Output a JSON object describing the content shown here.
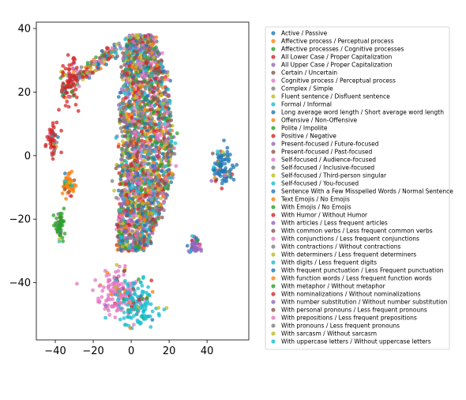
{
  "chart_data": {
    "type": "scatter",
    "title": "",
    "xlabel": "",
    "ylabel": "",
    "xlim": [
      -50,
      62
    ],
    "ylim": [
      -58,
      42
    ],
    "xticks": [
      -40,
      -20,
      0,
      20,
      40
    ],
    "yticks": [
      -40,
      -20,
      0,
      20,
      40
    ],
    "xtick_labels": [
      "−40",
      "−20",
      "0",
      "20",
      "40"
    ],
    "ytick_labels": [
      "−40",
      "−20",
      "0",
      "20",
      "40"
    ],
    "grid": false,
    "legend_position": "right, outside plot",
    "clusters": [
      {
        "center": [
          -41,
          5
        ],
        "spread": [
          1.5,
          2.2
        ],
        "count": 60,
        "color_index": 3
      },
      {
        "center": [
          -33,
          -9
        ],
        "spread": [
          1.5,
          1.8
        ],
        "count": 60,
        "color_index": 1
      },
      {
        "center": [
          -38,
          -22
        ],
        "spread": [
          1.3,
          2.2
        ],
        "count": 60,
        "color_index": 2
      },
      {
        "center": [
          -32,
          23
        ],
        "spread": [
          2.5,
          3.5
        ],
        "count": 80,
        "color_index": 3
      },
      {
        "center": [
          33,
          -28
        ],
        "spread": [
          1.7,
          1.4
        ],
        "count": 50,
        "color_index": 4
      },
      {
        "center": [
          48,
          -4
        ],
        "spread": [
          3.2,
          3.0
        ],
        "count": 90,
        "color_index": 0
      },
      {
        "center": [
          -7,
          -43
        ],
        "spread": [
          4.5,
          3.5
        ],
        "count": 150,
        "color_index": 16
      },
      {
        "center": [
          3,
          -47
        ],
        "spread": [
          5.5,
          3.5
        ],
        "count": 150,
        "color_index": 9
      }
    ],
    "main_blob": {
      "count": 2400,
      "description": "large multi-colored crescent cluster spanning x from -12 to 20 and y from -30 to 38, with a thin arm extending toward (-35, 25) and (-25, 32)"
    },
    "series": [
      {
        "name": "Active / Passive",
        "color": "#1f77b4"
      },
      {
        "name": "Affective process / Perceptual process",
        "color": "#ff7f0e"
      },
      {
        "name": "Affective processes / Cognitive processes",
        "color": "#2ca02c"
      },
      {
        "name": "All Lower Case / Proper Capitalization",
        "color": "#d62728"
      },
      {
        "name": "All Upper Case / Proper Capitalization",
        "color": "#9467bd"
      },
      {
        "name": "Certain / Uncertain",
        "color": "#8c564b"
      },
      {
        "name": "Cognitive process / Perceptual process",
        "color": "#e377c2"
      },
      {
        "name": "Complex / Simple",
        "color": "#7f7f7f"
      },
      {
        "name": "Fluent sentence / Disfluent sentence",
        "color": "#bcbd22"
      },
      {
        "name": "Formal / Informal",
        "color": "#17becf"
      },
      {
        "name": "Long average word length / Short average word length",
        "color": "#1f77b4"
      },
      {
        "name": "Offensive / Non-Offensive",
        "color": "#ff7f0e"
      },
      {
        "name": "Polite / Impolite",
        "color": "#2ca02c"
      },
      {
        "name": "Positive / Negative",
        "color": "#d62728"
      },
      {
        "name": "Present-focused / Future-focused",
        "color": "#9467bd"
      },
      {
        "name": "Present-focused / Past-focused",
        "color": "#8c564b"
      },
      {
        "name": "Self-focused / Audience-focused",
        "color": "#e377c2"
      },
      {
        "name": "Self-focused / Inclusive-focused",
        "color": "#7f7f7f"
      },
      {
        "name": "Self-focused / Third-person singular",
        "color": "#bcbd22"
      },
      {
        "name": "Self-focused / You-focused",
        "color": "#17becf"
      },
      {
        "name": "Sentence With a Few Misspelled Words / Normal Sentence",
        "color": "#1f77b4"
      },
      {
        "name": "Text Emojis / No Emojis",
        "color": "#ff7f0e"
      },
      {
        "name": "With Emojis / No Emojis",
        "color": "#2ca02c"
      },
      {
        "name": "With Humor / Without Humor",
        "color": "#d62728"
      },
      {
        "name": "With articles / Less frequent articles",
        "color": "#9467bd"
      },
      {
        "name": "With common verbs / Less frequent common verbs",
        "color": "#8c564b"
      },
      {
        "name": "With conjunctions / Less frequent conjunctions",
        "color": "#e377c2"
      },
      {
        "name": "With contractions / Without contractions",
        "color": "#7f7f7f"
      },
      {
        "name": "With determiners / Less frequent determiners",
        "color": "#bcbd22"
      },
      {
        "name": "With digits / Less frequent digits",
        "color": "#17becf"
      },
      {
        "name": "With frequent punctuation / Less Frequent punctuation",
        "color": "#1f77b4"
      },
      {
        "name": "With function words / Less frequent function words",
        "color": "#ff7f0e"
      },
      {
        "name": "With metaphor / Without metaphor",
        "color": "#2ca02c"
      },
      {
        "name": "With nominalizations / Without nominalizations",
        "color": "#d62728"
      },
      {
        "name": "With number substitution / Without number substitution",
        "color": "#9467bd"
      },
      {
        "name": "With personal pronouns / Less frequent pronouns",
        "color": "#8c564b"
      },
      {
        "name": "With prepositions / Less frequent prepositions",
        "color": "#e377c2"
      },
      {
        "name": "With pronouns / Less frequent pronouns",
        "color": "#7f7f7f"
      },
      {
        "name": "With sarcasm / Without sarcasm",
        "color": "#bcbd22"
      },
      {
        "name": "With uppercase letters / Without uppercase letters",
        "color": "#17becf"
      }
    ]
  }
}
